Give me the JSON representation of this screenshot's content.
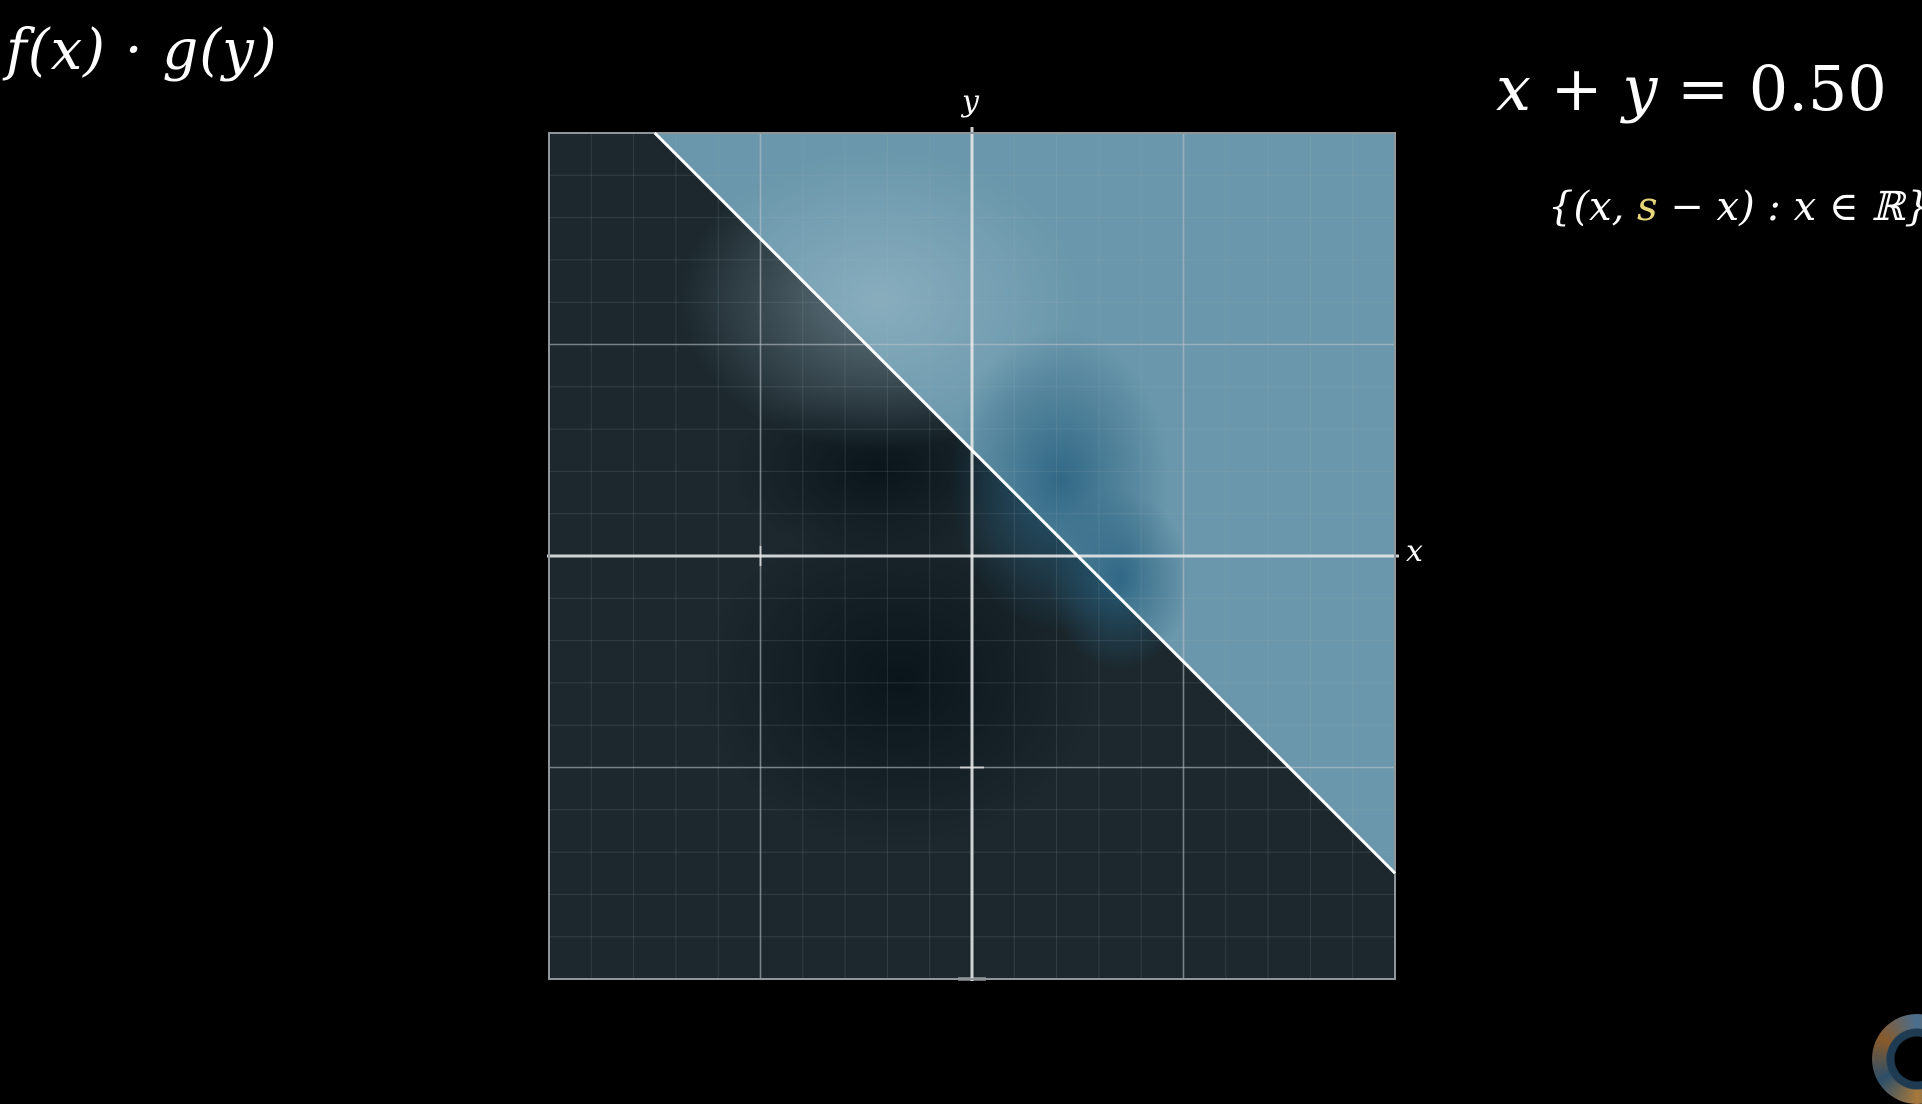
{
  "header": {
    "product_expression": "f(x) · g(y)",
    "equation_lhs": "x + y",
    "equation_eq": "=",
    "equation_value": "0.50",
    "set_open": "{(x, ",
    "set_accent": "s",
    "set_close": " − x) : x ∈ ℝ}"
  },
  "plot": {
    "x_axis_label": "x",
    "y_axis_label": "y",
    "x_range": [
      -2,
      2
    ],
    "y_range": [
      -2,
      2
    ],
    "major_grid_step": 1,
    "minor_grid_step": 0.2,
    "line_sum": 0.5,
    "line_equation": "x + y = s",
    "shaded_region": "x + y > s",
    "colors": {
      "background": "#000000",
      "plane": "#1c282e",
      "shaded": "#6a97ab",
      "line": "#ffffff",
      "accent": "#e8d77a"
    }
  },
  "icons": {
    "corner": "channel-logo-icon"
  }
}
